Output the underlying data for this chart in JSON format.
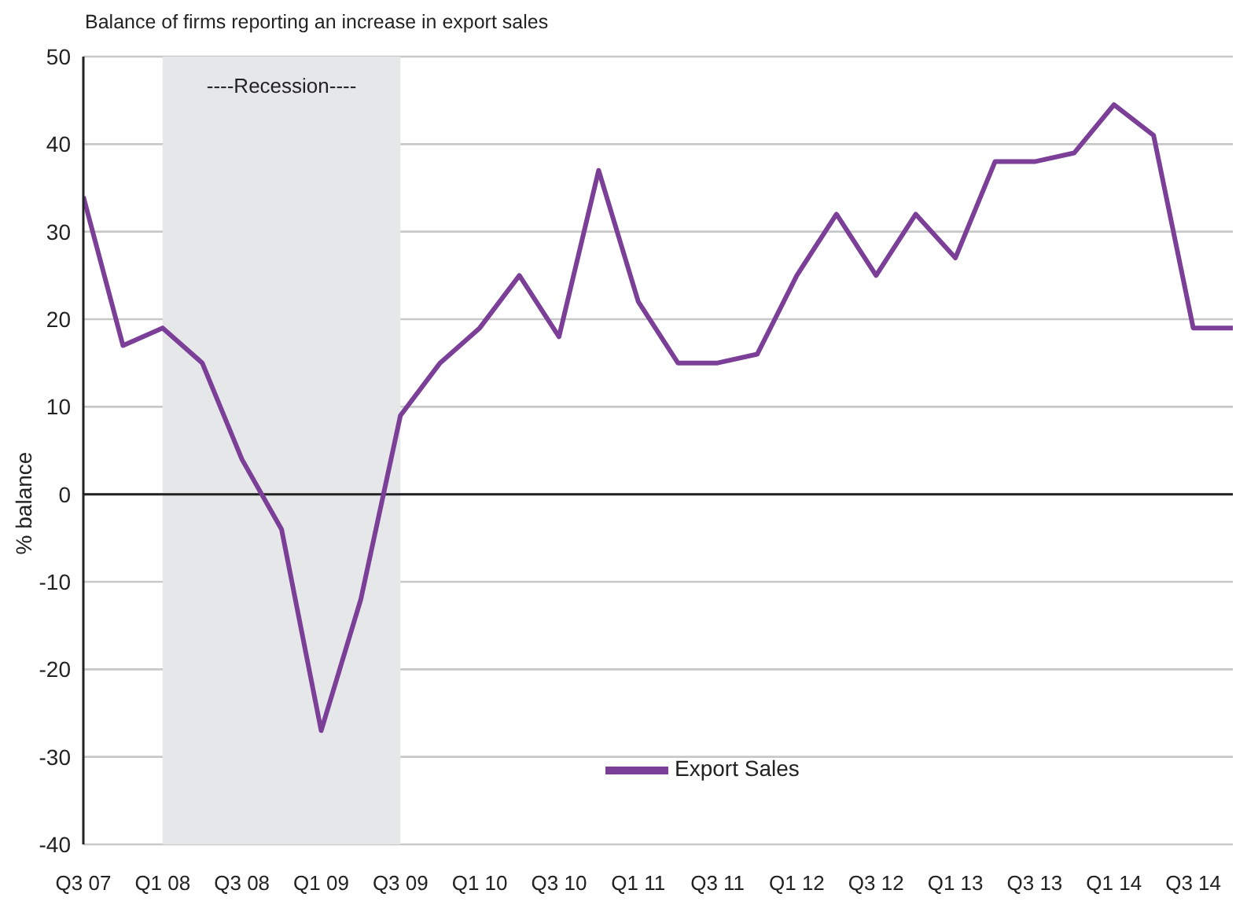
{
  "chart_data": {
    "type": "line",
    "title": "Balance of firms reporting an increase in export sales",
    "ylabel": "% balance",
    "categories": [
      "Q3 07",
      null,
      "Q1 08",
      null,
      "Q3 08",
      null,
      "Q1 09",
      null,
      "Q3 09",
      null,
      "Q1 10",
      null,
      "Q3 10",
      null,
      "Q1 11",
      null,
      "Q3 11",
      null,
      "Q1 12",
      null,
      "Q3 12",
      null,
      "Q1 13",
      null,
      "Q3 13",
      null,
      "Q1 14",
      null,
      "Q3 14",
      null
    ],
    "series": [
      {
        "name": "Export Sales",
        "color": "#7b3f98",
        "values": [
          34,
          17,
          19,
          15,
          4,
          -4,
          -27,
          -12,
          9,
          15,
          19,
          25,
          18,
          37,
          22,
          15,
          15,
          16,
          25,
          32,
          25,
          32,
          27,
          38,
          38,
          39,
          44.5,
          41,
          19,
          19
        ]
      }
    ],
    "ylim": [
      -40,
      50
    ],
    "yticks": [
      -40,
      -30,
      -20,
      -10,
      0,
      10,
      20,
      30,
      40,
      50
    ],
    "grid": "y",
    "legend": "bottom",
    "line_style": "solid",
    "marker": "none",
    "bands": [
      {
        "axis": "x",
        "from": "Q1 08",
        "to": "Q3 09",
        "label": "----Recession----",
        "color": "#e6e7e9"
      }
    ]
  }
}
